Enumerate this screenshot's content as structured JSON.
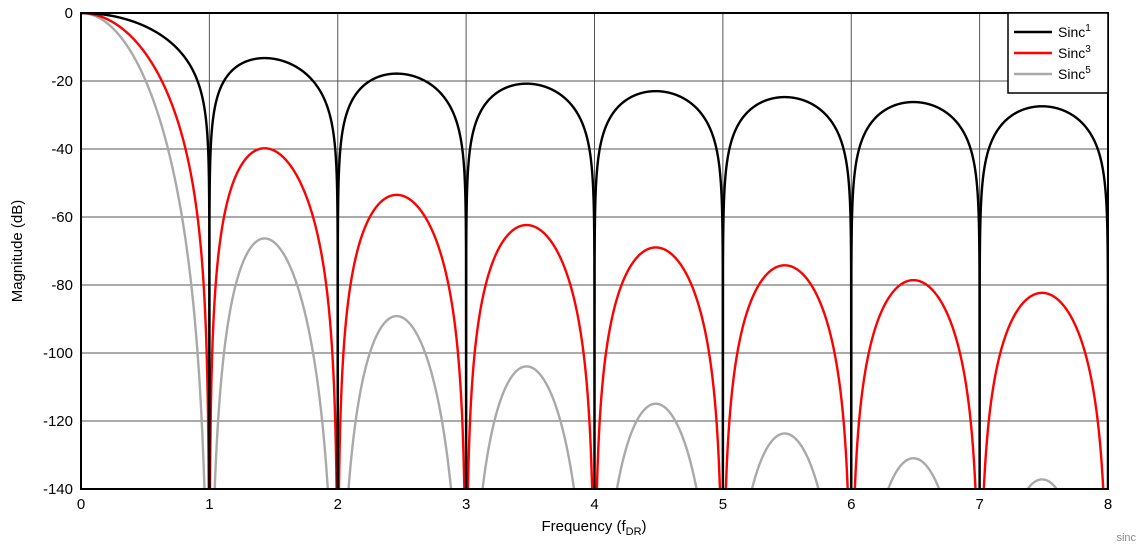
{
  "chart_data": {
    "type": "line",
    "xlabel": "Frequency (f",
    "xlabel_sub": "DR",
    "xlabel_end": ")",
    "ylabel": "Magnitude (dB)",
    "xlim": [
      0,
      8
    ],
    "ylim": [
      -140,
      0
    ],
    "x_ticks": [
      0,
      1,
      2,
      3,
      4,
      5,
      6,
      7,
      8
    ],
    "y_ticks": [
      0,
      -20,
      -40,
      -60,
      -80,
      -100,
      -120,
      -140
    ],
    "grid": true,
    "legend_position": "top-right",
    "series": [
      {
        "name": "Sinc",
        "superscript": "1",
        "order": 1,
        "color": "#000000",
        "x": [
          0.0,
          0.25,
          0.5,
          0.75,
          0.9,
          1.0,
          1.1,
          1.25,
          1.43,
          1.6,
          1.8,
          2.0,
          2.2,
          2.46,
          2.7,
          3.0,
          3.2,
          3.47,
          3.8,
          4.0,
          4.2,
          4.48,
          4.8,
          5.0,
          5.2,
          5.49,
          5.8,
          6.0,
          6.2,
          6.49,
          6.8,
          7.0,
          7.2,
          7.49,
          7.8,
          8.0
        ],
        "values": [
          0.0,
          -0.9,
          -3.9,
          -10.5,
          -20.0,
          -140,
          -20.8,
          -15.1,
          -13.3,
          -14.9,
          -19.1,
          -140,
          -21.5,
          -17.9,
          -19.6,
          -140,
          -24.4,
          -20.8,
          -22.6,
          -140,
          -26.5,
          -22.9,
          -24.7,
          -140,
          -28.1,
          -24.7,
          -26.3,
          -140,
          -29.3,
          -26.0,
          -27.6,
          -140,
          -30.5,
          -27.2,
          -28.8,
          -140
        ]
      },
      {
        "name": "Sinc",
        "superscript": "3",
        "order": 3,
        "color": "#ff0000",
        "x": [
          0.0,
          0.25,
          0.5,
          0.75,
          0.9,
          1.0,
          1.1,
          1.25,
          1.43,
          1.6,
          1.8,
          2.0,
          2.2,
          2.46,
          2.7,
          3.0,
          3.2,
          3.47,
          3.8,
          4.0,
          4.2,
          4.48,
          4.8,
          5.0,
          5.2,
          5.49,
          5.8,
          6.0,
          6.2,
          6.49,
          6.8,
          7.0,
          7.2,
          7.49,
          7.8,
          8.0
        ],
        "values": [
          0.0,
          -2.7,
          -11.7,
          -31.5,
          -60.0,
          -140,
          -62.4,
          -45.3,
          -39.9,
          -44.7,
          -57.3,
          -140,
          -64.5,
          -53.7,
          -58.8,
          -140,
          -73.2,
          -62.4,
          -67.8,
          -140,
          -79.5,
          -68.7,
          -74.1,
          -140,
          -84.3,
          -74.1,
          -78.9,
          -140,
          -87.9,
          -78.0,
          -82.8,
          -140,
          -91.5,
          -81.6,
          -86.4,
          -140
        ]
      },
      {
        "name": "Sinc",
        "superscript": "5",
        "order": 5,
        "color": "#a9a9a9",
        "x": [
          0.0,
          0.25,
          0.5,
          0.75,
          0.9,
          1.0,
          1.1,
          1.25,
          1.43,
          1.6,
          1.8,
          2.0,
          2.2,
          2.46,
          2.7,
          3.0,
          3.2,
          3.47,
          3.8,
          4.0,
          4.2,
          4.48,
          4.8,
          5.0,
          5.2,
          5.49,
          5.8,
          6.0,
          6.2,
          6.49,
          6.8,
          7.0,
          7.2,
          7.49,
          7.8,
          8.0
        ],
        "values": [
          0.0,
          -4.5,
          -19.5,
          -52.5,
          -100.0,
          -140,
          -104.0,
          -75.5,
          -66.5,
          -74.5,
          -95.5,
          -140,
          -107.5,
          -89.5,
          -98.0,
          -140,
          -122.0,
          -104.0,
          -113.0,
          -140,
          -132.5,
          -114.5,
          -123.5,
          -140,
          -140,
          -123.5,
          -131.5,
          -140,
          -140,
          -130.0,
          -138.0,
          -140,
          -140,
          -136.0,
          -140,
          -140
        ]
      }
    ]
  },
  "watermark": "sinc"
}
